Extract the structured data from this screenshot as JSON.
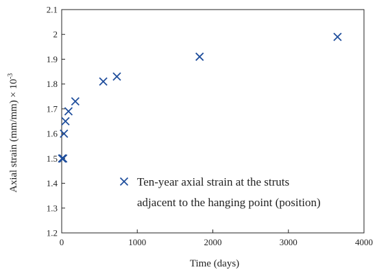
{
  "chart_data": {
    "type": "scatter",
    "title": "",
    "xlabel": "Time (days)",
    "ylabel": "Axial strain (mm/mm) × 10",
    "ylabel_superscript": "-3",
    "xlim": [
      0,
      4000
    ],
    "ylim": [
      1.2,
      2.1
    ],
    "x_ticks": [
      0,
      1000,
      2000,
      3000,
      4000
    ],
    "x_tick_labels": [
      "0",
      "1000",
      "2000",
      "3000",
      "4000"
    ],
    "y_ticks": [
      1.2,
      1.3,
      1.4,
      1.5,
      1.6,
      1.7,
      1.8,
      1.9,
      2.0,
      2.1
    ],
    "y_tick_labels": [
      "1.2",
      "1.3",
      "1.4",
      "1.5",
      "1.6",
      "1.7",
      "1.8",
      "1.9",
      "2",
      "2.1"
    ],
    "grid": false,
    "legend_position": "center-right",
    "marker": "x",
    "color": "#1f4e9c",
    "series": [
      {
        "name_lines": [
          "Ten-year axial strain at the struts",
          "adjacent to the hanging point (position)"
        ],
        "x": [
          5,
          10,
          20,
          30,
          50,
          90,
          180,
          550,
          730,
          1825,
          3650
        ],
        "y": [
          1.5,
          1.5,
          1.5,
          1.6,
          1.65,
          1.69,
          1.73,
          1.81,
          1.83,
          1.91,
          1.99
        ]
      }
    ]
  }
}
